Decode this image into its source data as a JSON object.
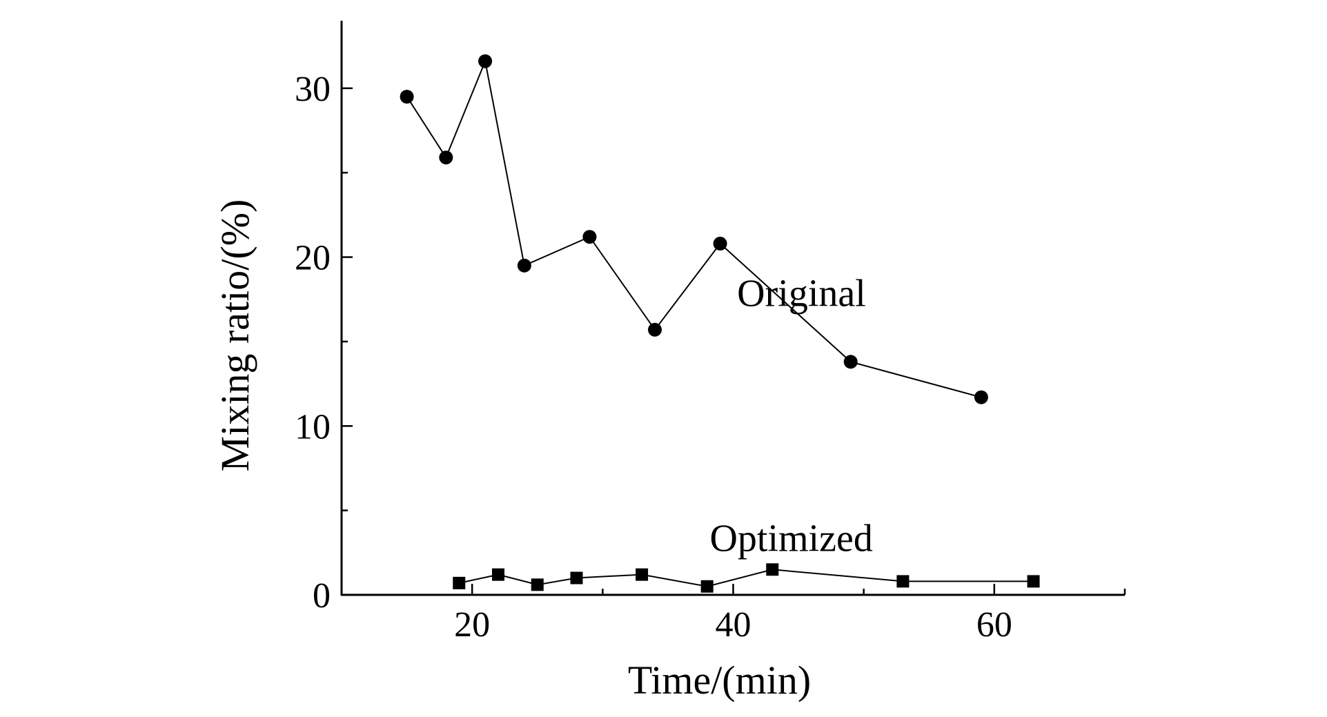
{
  "chart_data": {
    "type": "line",
    "title": "",
    "xlabel": "Time/(min)",
    "ylabel": "Mixing ratio/(%)",
    "xlim": [
      10,
      70
    ],
    "ylim": [
      0,
      34
    ],
    "x_major_ticks": [
      20,
      40,
      60
    ],
    "x_minor_ticks": [
      30,
      50,
      70
    ],
    "y_major_ticks": [
      0,
      10,
      20,
      30
    ],
    "y_minor_ticks": [
      5,
      15,
      25
    ],
    "x_tick_labels": [
      "20",
      "40",
      "60"
    ],
    "y_tick_labels": [
      "0",
      "10",
      "20",
      "30"
    ],
    "grid": false,
    "series": [
      {
        "name": "Original",
        "marker": "circle",
        "color": "#000000",
        "x": [
          15,
          18,
          21,
          24,
          29,
          34,
          39,
          49,
          59
        ],
        "y": [
          29.5,
          25.9,
          31.6,
          19.5,
          21.2,
          15.7,
          20.8,
          13.8,
          11.7
        ]
      },
      {
        "name": "Optimized",
        "marker": "square",
        "color": "#000000",
        "x": [
          19,
          22,
          25,
          28,
          33,
          38,
          43,
          53,
          63
        ],
        "y": [
          0.7,
          1.2,
          0.6,
          1.0,
          1.2,
          0.5,
          1.5,
          0.8,
          0.8
        ]
      }
    ]
  }
}
